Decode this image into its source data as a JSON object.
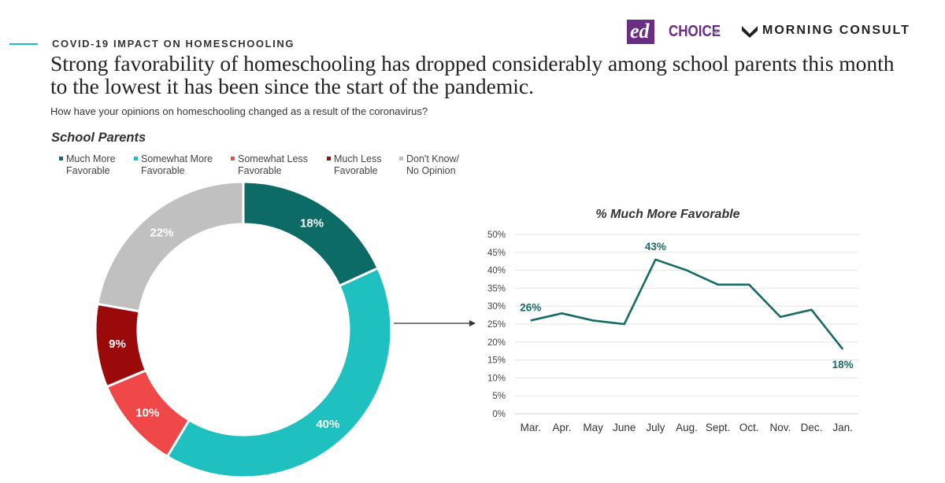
{
  "header": {
    "kicker": "COVID-19 IMPACT ON HOMESCHOOLING",
    "headline": "Strong favorability of homeschooling has dropped considerably among school parents this month to the lowest it has been since the start of the pandemic.",
    "question": "How have your opinions on homeschooling changed as a result of the coronavirus?"
  },
  "logos": {
    "edchoice_ed": "ed",
    "edchoice_choice": "CHOICE",
    "plus": "+",
    "morning_consult": "MORNING CONSULT",
    "edchoice_color": "#6a2d84"
  },
  "icons": {
    "arrow": "right-arrow-icon",
    "morning_consult_mark": "m-chevron-icon"
  },
  "chart_data": [
    {
      "type": "pie",
      "variant": "donut",
      "title": "School Parents",
      "legend_position": "top",
      "slices": [
        {
          "label": [
            "Much More",
            "Favorable"
          ],
          "value": 18,
          "data_label": "18%",
          "color": "#0d6b66"
        },
        {
          "label": [
            "Somewhat More",
            "Favorable"
          ],
          "value": 40,
          "data_label": "40%",
          "color": "#1fc0c0"
        },
        {
          "label": [
            "Somewhat Less",
            "Favorable"
          ],
          "value": 10,
          "data_label": "10%",
          "color": "#f04848"
        },
        {
          "label": [
            "Much Less",
            "Favorable"
          ],
          "value": 9,
          "data_label": "9%",
          "color": "#9b0a0a"
        },
        {
          "label": [
            "Don't Know/",
            "No Opinion"
          ],
          "value": 22,
          "data_label": "22%",
          "color": "#c0c0c0"
        }
      ]
    },
    {
      "type": "line",
      "title": "% Much More Favorable",
      "categories": [
        "Mar.",
        "Apr.",
        "May",
        "June",
        "July",
        "Aug.",
        "Sept.",
        "Oct.",
        "Nov.",
        "Dec.",
        "Jan."
      ],
      "values": [
        26,
        28,
        26,
        25,
        43,
        40,
        36,
        36,
        27,
        29,
        18
      ],
      "data_labels": [
        {
          "index": 0,
          "text": "26%"
        },
        {
          "index": 4,
          "text": "43%"
        },
        {
          "index": 10,
          "text": "18%"
        }
      ],
      "ylim": [
        0,
        50
      ],
      "yticks": [
        "0%",
        "5%",
        "10%",
        "15%",
        "20%",
        "25%",
        "30%",
        "35%",
        "40%",
        "45%",
        "50%"
      ],
      "grid": true,
      "color": "#166b66"
    }
  ]
}
